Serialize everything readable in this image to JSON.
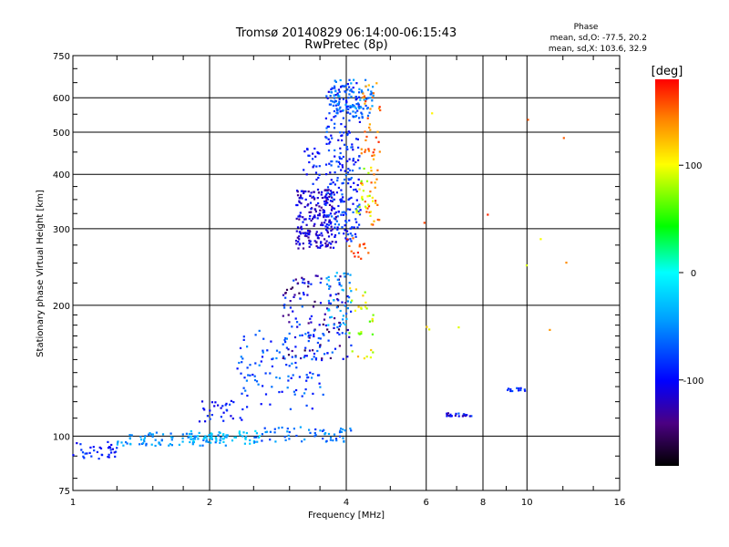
{
  "chart_data": {
    "type": "scatter",
    "title": "Tromsø 20140829 06:14:00-06:15:43",
    "subtitle": "RwPretec (8p)",
    "phase_stats": {
      "heading": "Phase",
      "o_line": "mean, sd,O: -77.5, 20.2",
      "x_line": "mean, sd,X: 103.6, 32.9"
    },
    "xlabel": "Frequency [MHz]",
    "ylabel": "Stationary phase Virtual Height [km]",
    "x_scale": "log2",
    "y_scale": "log",
    "xlim": [
      1,
      16
    ],
    "ylim": [
      75,
      750
    ],
    "x_ticks": [
      1,
      2,
      4,
      6,
      8,
      10,
      16
    ],
    "x_tick_labels": [
      "1",
      "2",
      "4",
      "6",
      "8",
      "10",
      "16"
    ],
    "y_ticks": [
      75,
      100,
      200,
      300,
      400,
      500,
      600,
      750
    ],
    "y_tick_labels": [
      "75",
      "100",
      "200",
      "300",
      "400",
      "500",
      "600",
      "750"
    ],
    "grid": true,
    "colorbar": {
      "label": "[deg]",
      "min": -180,
      "max": 180,
      "ticks": [
        100,
        0,
        -100
      ],
      "tick_labels": [
        "100",
        "0",
        "-100"
      ]
    },
    "clusters": [
      {
        "f": [
          1.0,
          1.25
        ],
        "h": [
          88,
          97
        ],
        "phase": [
          -110,
          -70
        ],
        "n": 35
      },
      {
        "f": [
          1.25,
          2.2
        ],
        "h": [
          95,
          102
        ],
        "phase": [
          -70,
          -30
        ],
        "n": 90
      },
      {
        "f": [
          1.8,
          2.6
        ],
        "h": [
          96,
          103
        ],
        "phase": [
          -40,
          -10
        ],
        "n": 50
      },
      {
        "f": [
          2.5,
          4.1
        ],
        "h": [
          97,
          105
        ],
        "phase": [
          -90,
          -40
        ],
        "n": 60
      },
      {
        "f": [
          1.9,
          2.4
        ],
        "h": [
          108,
          122
        ],
        "phase": [
          -110,
          -70
        ],
        "n": 30
      },
      {
        "f": [
          2.3,
          3.6
        ],
        "h": [
          115,
          175
        ],
        "phase": [
          -100,
          -50
        ],
        "n": 110
      },
      {
        "f": [
          2.9,
          4.1
        ],
        "h": [
          150,
          235
        ],
        "phase": [
          -160,
          -60
        ],
        "n": 140
      },
      {
        "f": [
          3.6,
          4.1
        ],
        "h": [
          180,
          240
        ],
        "phase": [
          -60,
          -20
        ],
        "n": 40
      },
      {
        "f": [
          4.05,
          4.6
        ],
        "h": [
          150,
          220
        ],
        "phase": [
          60,
          130
        ],
        "n": 30
      },
      {
        "f": [
          3.1,
          3.8
        ],
        "h": [
          270,
          370
        ],
        "phase": [
          -140,
          -90
        ],
        "n": 220
      },
      {
        "f": [
          3.2,
          3.5
        ],
        "h": [
          380,
          460
        ],
        "phase": [
          -110,
          -80
        ],
        "n": 25
      },
      {
        "f": [
          3.6,
          4.3
        ],
        "h": [
          280,
          650
        ],
        "phase": [
          -110,
          -60
        ],
        "n": 260
      },
      {
        "f": [
          3.7,
          4.6
        ],
        "h": [
          540,
          660
        ],
        "phase": [
          -80,
          -40
        ],
        "n": 80
      },
      {
        "f": [
          4.3,
          4.75
        ],
        "h": [
          300,
          650
        ],
        "phase": [
          120,
          170
        ],
        "n": 60
      },
      {
        "f": [
          4.2,
          4.6
        ],
        "h": [
          320,
          420
        ],
        "phase": [
          70,
          110
        ],
        "n": 25
      },
      {
        "f": [
          4.0,
          4.5
        ],
        "h": [
          250,
          290
        ],
        "phase": [
          150,
          175
        ],
        "n": 15
      },
      {
        "f": [
          6.6,
          7.6
        ],
        "h": [
          111,
          113
        ],
        "phase": [
          -140,
          -60
        ],
        "n": 22
      },
      {
        "f": [
          8.9,
          9.9
        ],
        "h": [
          127,
          129
        ],
        "phase": [
          -100,
          -70
        ],
        "n": 12
      },
      {
        "f": [
          5.9,
          12.5
        ],
        "h": [
          170,
          600
        ],
        "phase": [
          80,
          170
        ],
        "n": 12
      }
    ]
  }
}
